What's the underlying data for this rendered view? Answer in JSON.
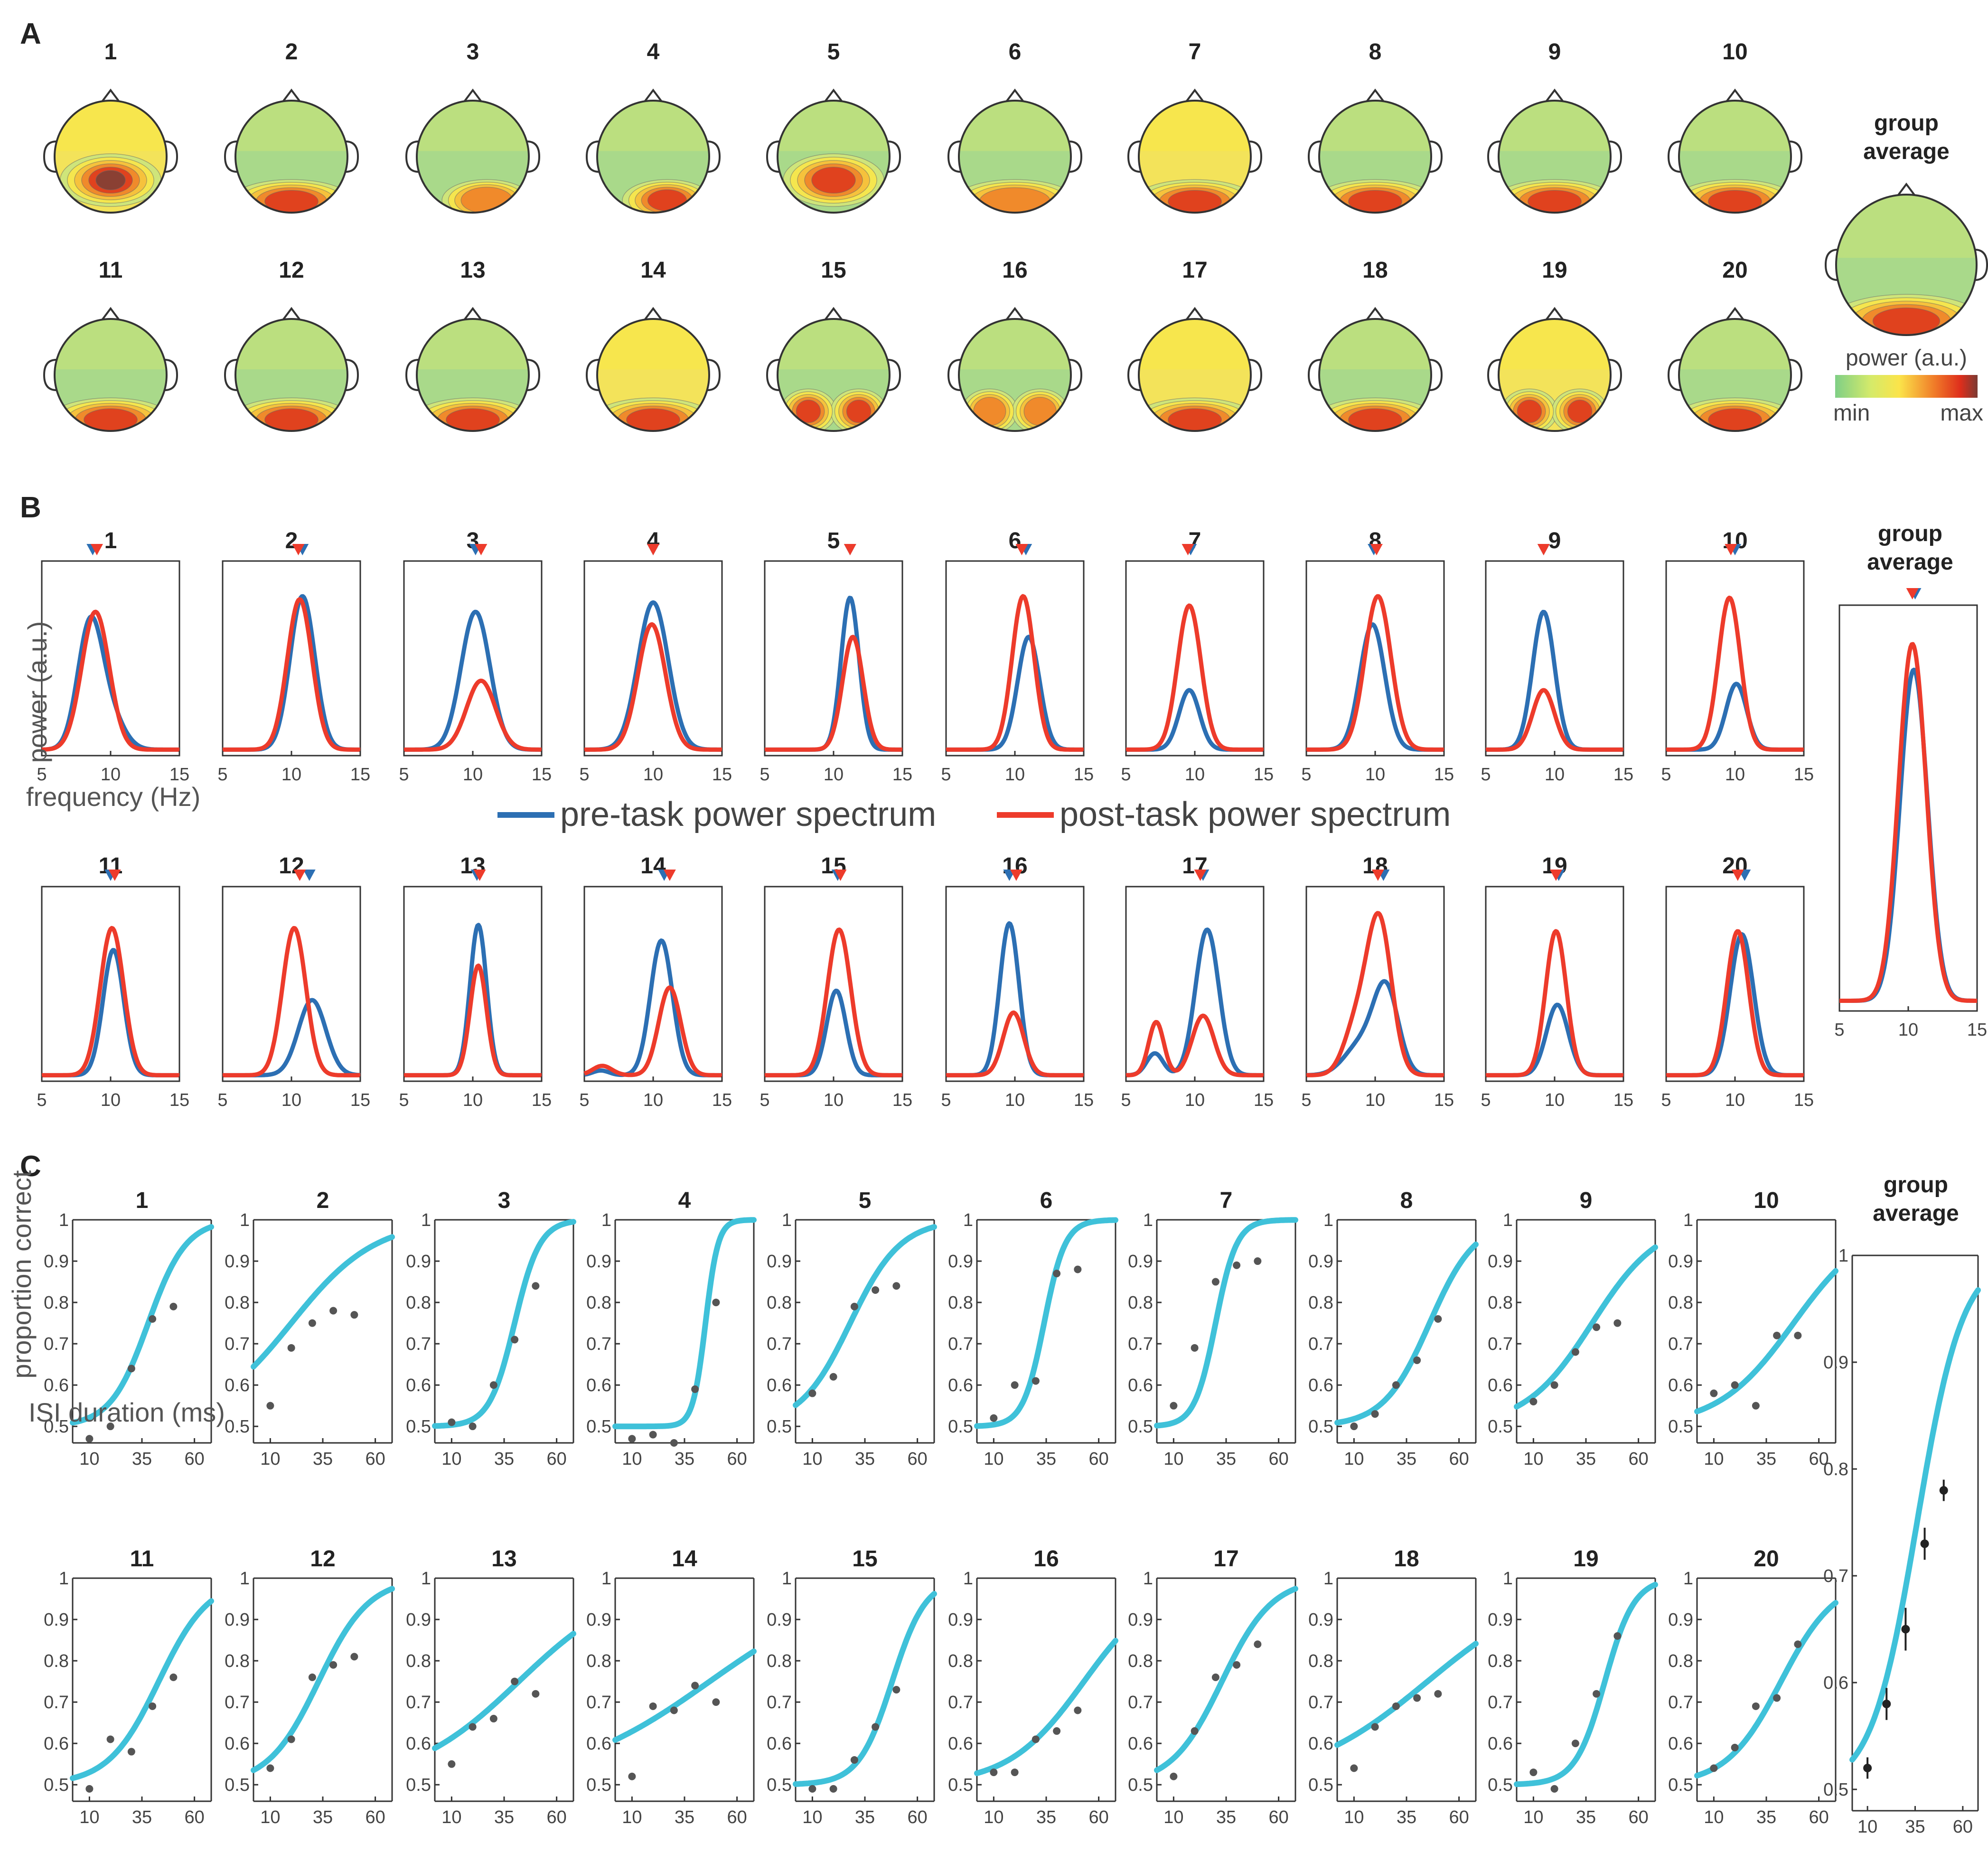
{
  "panels": {
    "a": "A",
    "b": "B",
    "c": "C"
  },
  "group_title": [
    "group",
    "average"
  ],
  "colors": {
    "pre": "#2c6fb3",
    "post": "#ed3b2b",
    "fit": "#3fc1d9",
    "dot": "#555555"
  },
  "colorbar": {
    "label": "power (a.u.)",
    "min": "min",
    "max": "max"
  },
  "legend": {
    "pre": "pre-task power spectrum",
    "post": "post-task power spectrum"
  },
  "spectra_axes": {
    "ylabel": "power (a.u.)",
    "xlabel": "frequency (Hz)",
    "xticks": [
      "5",
      "10",
      "15"
    ]
  },
  "psych_axes": {
    "ylabel": "proportion correct",
    "xlabel": "ISI duration (ms)",
    "xticks": [
      "10",
      "35",
      "60"
    ],
    "yticks": [
      "0.5",
      "0.6",
      "0.7",
      "0.8",
      "0.9",
      "1"
    ]
  },
  "participants": [
    "1",
    "2",
    "3",
    "4",
    "5",
    "6",
    "7",
    "8",
    "9",
    "10",
    "11",
    "12",
    "13",
    "14",
    "15",
    "16",
    "17",
    "18",
    "19",
    "20"
  ],
  "chart_data": [
    {
      "type": "heatmap",
      "title": "A",
      "scale": [
        "min",
        "max"
      ],
      "topomaps": [
        {
          "id": "1",
          "pattern": "parietal",
          "peak": 0.95,
          "base": 0.5
        },
        {
          "id": "2",
          "pattern": "occipital",
          "peak": 0.8,
          "base": 0.3
        },
        {
          "id": "3",
          "pattern": "occipital-right",
          "peak": 0.65,
          "base": 0.28
        },
        {
          "id": "4",
          "pattern": "occipital-right",
          "peak": 0.85,
          "base": 0.35
        },
        {
          "id": "5",
          "pattern": "parietal",
          "peak": 0.9,
          "base": 0.45
        },
        {
          "id": "6",
          "pattern": "occipital",
          "peak": 0.7,
          "base": 0.4
        },
        {
          "id": "7",
          "pattern": "occipital",
          "peak": 0.9,
          "base": 0.55
        },
        {
          "id": "8",
          "pattern": "occipital",
          "peak": 0.85,
          "base": 0.4
        },
        {
          "id": "9",
          "pattern": "occipital",
          "peak": 0.9,
          "base": 0.45
        },
        {
          "id": "10",
          "pattern": "occipital",
          "peak": 0.9,
          "base": 0.45
        },
        {
          "id": "11",
          "pattern": "occipital",
          "peak": 0.9,
          "base": 0.4
        },
        {
          "id": "12",
          "pattern": "occipital",
          "peak": 0.85,
          "base": 0.35
        },
        {
          "id": "13",
          "pattern": "occipital",
          "peak": 0.85,
          "base": 0.4
        },
        {
          "id": "14",
          "pattern": "occipital",
          "peak": 0.9,
          "base": 0.5
        },
        {
          "id": "15",
          "pattern": "bilateral",
          "peak": 0.85,
          "base": 0.45
        },
        {
          "id": "16",
          "pattern": "bilateral",
          "peak": 0.75,
          "base": 0.3
        },
        {
          "id": "17",
          "pattern": "occipital",
          "peak": 0.85,
          "base": 0.5
        },
        {
          "id": "18",
          "pattern": "occipital",
          "peak": 0.85,
          "base": 0.35
        },
        {
          "id": "19",
          "pattern": "bilateral",
          "peak": 0.8,
          "base": 0.55
        },
        {
          "id": "20",
          "pattern": "occipital",
          "peak": 0.85,
          "base": 0.45
        },
        {
          "id": "group average",
          "pattern": "occipital",
          "peak": 0.88,
          "base": 0.45
        }
      ]
    },
    {
      "type": "line",
      "title": "B",
      "xlabel": "frequency (Hz)",
      "ylabel": "power (a.u.)",
      "xlim": [
        5,
        15
      ],
      "series_names": [
        "pre-task power spectrum",
        "post-task power spectrum"
      ],
      "spectra": [
        {
          "id": "1",
          "pre": {
            "f": 8.5,
            "a": 0.78,
            "w": 0.9
          },
          "post": {
            "f": 8.9,
            "a": 0.88,
            "w": 1.0
          },
          "pre_sec": {
            "f": 10.0,
            "a": 0.2,
            "w": 1.0
          },
          "pre_peak": 8.7,
          "post_peak": 9.0
        },
        {
          "id": "2",
          "pre": {
            "f": 10.8,
            "a": 0.98,
            "w": 0.9
          },
          "post": {
            "f": 10.6,
            "a": 0.96,
            "w": 0.9
          },
          "pre_peak": 10.8,
          "post_peak": 10.5
        },
        {
          "id": "3",
          "pre": {
            "f": 10.2,
            "a": 0.88,
            "w": 1.05
          },
          "post": {
            "f": 10.6,
            "a": 0.44,
            "w": 1.05
          },
          "pre_peak": 10.2,
          "post_peak": 10.6
        },
        {
          "id": "4",
          "pre": {
            "f": 10.0,
            "a": 0.94,
            "w": 1.1
          },
          "post": {
            "f": 9.9,
            "a": 0.8,
            "w": 1.0
          },
          "pre_peak": 10.0,
          "post_peak": 10.0
        },
        {
          "id": "5",
          "pre": {
            "f": 11.2,
            "a": 0.97,
            "w": 0.65
          },
          "post": {
            "f": 11.4,
            "a": 0.72,
            "w": 0.75
          },
          "pre_peak": 11.2,
          "post_peak": 11.2
        },
        {
          "id": "6",
          "pre": {
            "f": 11.0,
            "a": 0.72,
            "w": 0.8
          },
          "post": {
            "f": 10.6,
            "a": 0.98,
            "w": 0.8
          },
          "pre_peak": 10.8,
          "post_peak": 10.5
        },
        {
          "id": "7",
          "pre": {
            "f": 9.6,
            "a": 0.38,
            "w": 0.75
          },
          "post": {
            "f": 9.6,
            "a": 0.92,
            "w": 0.85
          },
          "pre_peak": 9.7,
          "post_peak": 9.5
        },
        {
          "id": "8",
          "pre": {
            "f": 9.8,
            "a": 0.8,
            "w": 0.9
          },
          "post": {
            "f": 10.2,
            "a": 0.98,
            "w": 0.95
          },
          "pre_peak": 9.9,
          "post_peak": 10.1
        },
        {
          "id": "9",
          "pre": {
            "f": 9.2,
            "a": 0.88,
            "w": 0.8
          },
          "post": {
            "f": 9.2,
            "a": 0.38,
            "w": 0.8
          },
          "pre_peak": 9.2,
          "post_peak": 9.2
        },
        {
          "id": "10",
          "pre": {
            "f": 10.1,
            "a": 0.42,
            "w": 0.75
          },
          "post": {
            "f": 9.6,
            "a": 0.97,
            "w": 0.8
          },
          "pre_peak": 10.0,
          "post_peak": 9.7
        },
        {
          "id": "11",
          "pre": {
            "f": 10.2,
            "a": 0.8,
            "w": 0.75
          },
          "post": {
            "f": 10.1,
            "a": 0.94,
            "w": 0.85
          },
          "pre_peak": 10.0,
          "post_peak": 10.3
        },
        {
          "id": "12",
          "pre": {
            "f": 11.5,
            "a": 0.48,
            "w": 1.0
          },
          "post": {
            "f": 10.2,
            "a": 0.94,
            "w": 0.85
          },
          "pre_peak": 11.3,
          "post_peak": 10.6
        },
        {
          "id": "13",
          "pre": {
            "f": 10.4,
            "a": 0.96,
            "w": 0.6
          },
          "post": {
            "f": 10.4,
            "a": 0.7,
            "w": 0.6
          },
          "pre_peak": 10.3,
          "post_peak": 10.5
        },
        {
          "id": "14",
          "pre": {
            "f": 10.6,
            "a": 0.86,
            "w": 0.8
          },
          "post": {
            "f": 11.2,
            "a": 0.56,
            "w": 0.8
          },
          "post_sec": {
            "f": 6.3,
            "a": 0.06,
            "w": 0.7
          },
          "pre_sec": {
            "f": 6.2,
            "a": 0.03,
            "w": 0.6
          },
          "pre_peak": 10.8,
          "post_peak": 11.2
        },
        {
          "id": "15",
          "pre": {
            "f": 10.2,
            "a": 0.54,
            "w": 0.7
          },
          "post": {
            "f": 10.4,
            "a": 0.93,
            "w": 0.85
          },
          "pre_peak": 10.3,
          "post_peak": 10.5
        },
        {
          "id": "16",
          "pre": {
            "f": 9.6,
            "a": 0.97,
            "w": 0.7
          },
          "post": {
            "f": 9.9,
            "a": 0.4,
            "w": 0.75
          },
          "pre_peak": 9.6,
          "post_peak": 10.1
        },
        {
          "id": "17",
          "pre": {
            "f": 10.9,
            "a": 0.93,
            "w": 0.85
          },
          "post": {
            "f": 10.6,
            "a": 0.38,
            "w": 0.8
          },
          "post_sec": {
            "f": 7.2,
            "a": 0.34,
            "w": 0.55
          },
          "pre_sec": {
            "f": 7.1,
            "a": 0.14,
            "w": 0.6
          },
          "pre_peak": 10.6,
          "post_peak": 10.4
        },
        {
          "id": "18",
          "pre": {
            "f": 10.8,
            "a": 0.53,
            "w": 0.9
          },
          "post": {
            "f": 10.3,
            "a": 0.98,
            "w": 0.9
          },
          "pre_sec": {
            "f": 9.0,
            "a": 0.2,
            "w": 1.2
          },
          "post_sec": {
            "f": 8.6,
            "a": 0.3,
            "w": 0.9
          },
          "pre_peak": 10.6,
          "post_peak": 10.2
        },
        {
          "id": "19",
          "pre": {
            "f": 10.2,
            "a": 0.45,
            "w": 0.8
          },
          "post": {
            "f": 10.1,
            "a": 0.92,
            "w": 0.75
          },
          "pre_peak": 10.3,
          "post_peak": 10.1
        },
        {
          "id": "20",
          "pre": {
            "f": 10.5,
            "a": 0.9,
            "w": 0.85
          },
          "post": {
            "f": 10.2,
            "a": 0.92,
            "w": 0.8
          },
          "pre_peak": 10.7,
          "post_peak": 10.2
        },
        {
          "id": "group average",
          "pre": {
            "f": 10.4,
            "a": 0.9,
            "w": 1.0
          },
          "post": {
            "f": 10.3,
            "a": 0.97,
            "w": 1.0
          },
          "pre_peak": 10.5,
          "post_peak": 10.3
        }
      ]
    },
    {
      "type": "scatter",
      "title": "C",
      "xlabel": "ISI duration (ms)",
      "ylabel": "proportion correct",
      "xlim": [
        2,
        68
      ],
      "ylim": [
        0.46,
        1.0
      ],
      "isi": [
        10,
        20,
        30,
        40,
        50
      ],
      "psychometric": [
        {
          "id": "1",
          "points": [
            0.47,
            0.5,
            0.64,
            0.76,
            0.79
          ],
          "fit": {
            "t": 38,
            "s": 9
          }
        },
        {
          "id": "2",
          "points": [
            0.55,
            0.69,
            0.75,
            0.78,
            0.77
          ],
          "fit": {
            "t": 20,
            "s": 20
          }
        },
        {
          "id": "3",
          "points": [
            0.51,
            0.5,
            0.6,
            0.71,
            0.84
          ],
          "fit": {
            "t": 40,
            "s": 6
          }
        },
        {
          "id": "4",
          "points": [
            0.47,
            0.48,
            0.46,
            0.59,
            0.8
          ],
          "fit": {
            "t": 45,
            "s": 3
          }
        },
        {
          "id": "5",
          "points": [
            0.58,
            0.62,
            0.79,
            0.83,
            0.84
          ],
          "fit": {
            "t": 28,
            "s": 12
          }
        },
        {
          "id": "6",
          "points": [
            0.52,
            0.6,
            0.61,
            0.87,
            0.88
          ],
          "fit": {
            "t": 34,
            "s": 5
          }
        },
        {
          "id": "7",
          "points": [
            0.55,
            0.69,
            0.85,
            0.89,
            0.9
          ],
          "fit": {
            "t": 30,
            "s": 5
          }
        },
        {
          "id": "8",
          "points": [
            0.5,
            0.53,
            0.6,
            0.66,
            0.76
          ],
          "fit": {
            "t": 46,
            "s": 11
          }
        },
        {
          "id": "9",
          "points": [
            0.56,
            0.6,
            0.68,
            0.74,
            0.75
          ],
          "fit": {
            "t": 38,
            "s": 16
          }
        },
        {
          "id": "10",
          "points": [
            0.58,
            0.6,
            0.55,
            0.72,
            0.72
          ],
          "fit": {
            "t": 48,
            "s": 18
          }
        },
        {
          "id": "11",
          "points": [
            0.49,
            0.61,
            0.58,
            0.69,
            0.76
          ],
          "fit": {
            "t": 43,
            "s": 12
          }
        },
        {
          "id": "12",
          "points": [
            0.54,
            0.61,
            0.76,
            0.79,
            0.81
          ],
          "fit": {
            "t": 33,
            "s": 12
          }
        },
        {
          "id": "13",
          "points": [
            0.55,
            0.64,
            0.66,
            0.75,
            0.72
          ],
          "fit": {
            "t": 42,
            "s": 26
          }
        },
        {
          "id": "14",
          "points": [
            0.52,
            0.69,
            0.68,
            0.74,
            0.7
          ],
          "fit": {
            "t": 47,
            "s": 35
          }
        },
        {
          "id": "15",
          "points": [
            0.49,
            0.49,
            0.56,
            0.64,
            0.73
          ],
          "fit": {
            "t": 48,
            "s": 8
          }
        },
        {
          "id": "16",
          "points": [
            0.53,
            0.53,
            0.61,
            0.63,
            0.68
          ],
          "fit": {
            "t": 53,
            "s": 18
          }
        },
        {
          "id": "17",
          "points": [
            0.52,
            0.63,
            0.76,
            0.79,
            0.84
          ],
          "fit": {
            "t": 33,
            "s": 12
          }
        },
        {
          "id": "18",
          "points": [
            0.54,
            0.64,
            0.69,
            0.71,
            0.72
          ],
          "fit": {
            "t": 45,
            "s": 30
          }
        },
        {
          "id": "19",
          "points": [
            0.53,
            0.49,
            0.6,
            0.72,
            0.86
          ],
          "fit": {
            "t": 44,
            "s": 7
          }
        },
        {
          "id": "20",
          "points": [
            0.54,
            0.59,
            0.69,
            0.71,
            0.84
          ],
          "fit": {
            "t": 42,
            "s": 13
          }
        }
      ],
      "group_average": {
        "points": [
          0.52,
          0.58,
          0.65,
          0.73,
          0.78
        ],
        "errors": [
          0.01,
          0.015,
          0.02,
          0.015,
          0.01
        ],
        "fit": {
          "t": 36,
          "s": 12
        },
        "ylim": [
          0.48,
          1.0
        ],
        "yticks": [
          "0.5",
          "0.6",
          "0.7",
          "0.8",
          "0.9",
          "1"
        ]
      }
    }
  ]
}
